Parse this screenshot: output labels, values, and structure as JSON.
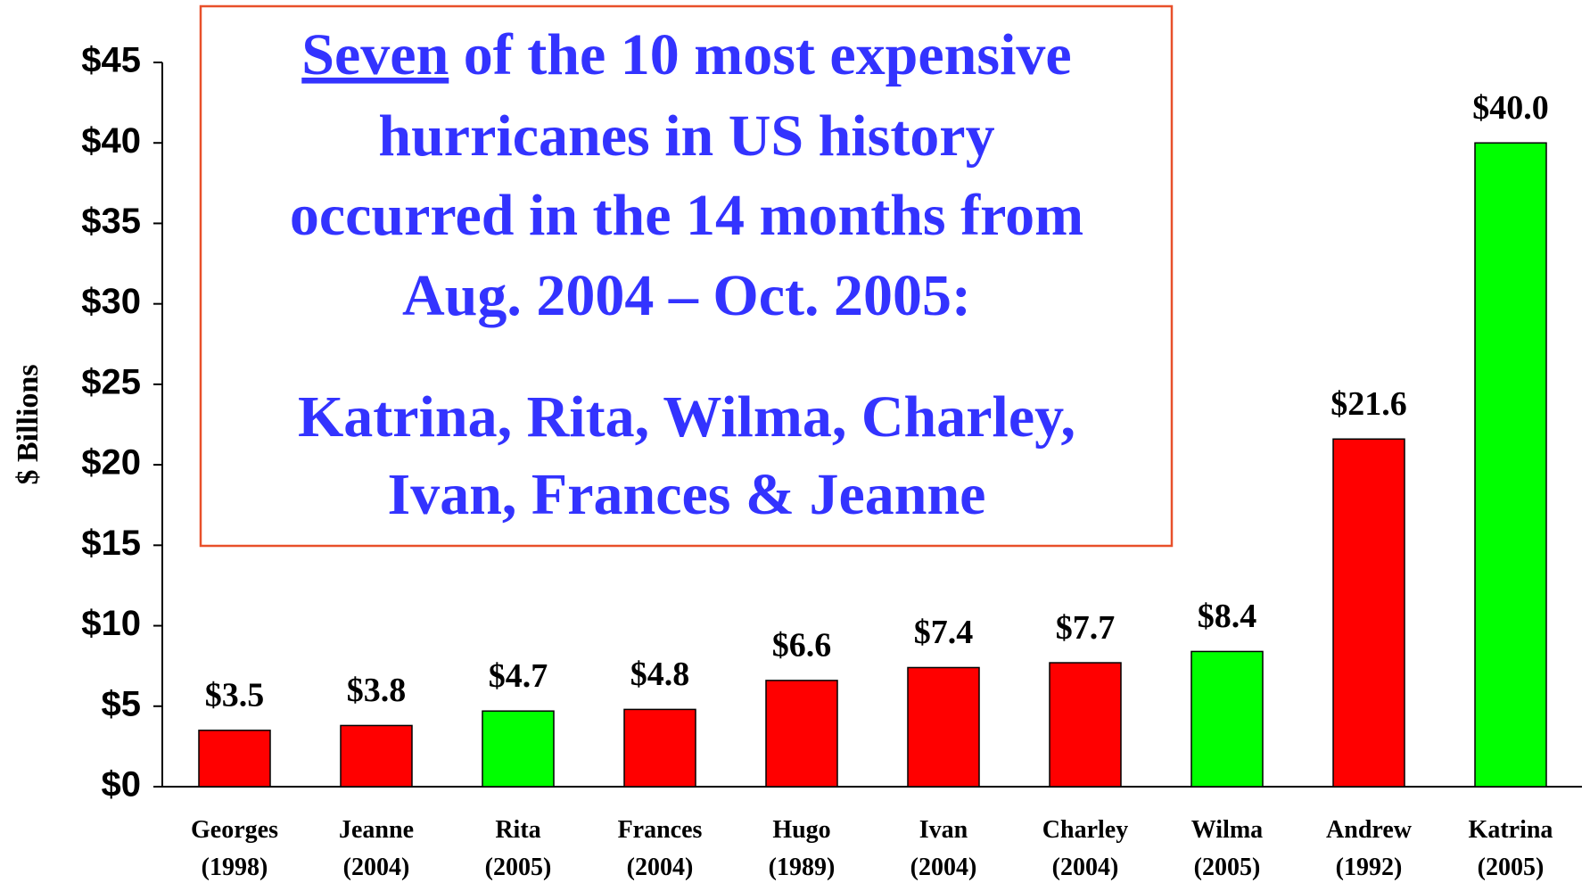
{
  "chart_data": {
    "type": "bar",
    "y_label": "$ Billions",
    "categories": [
      "Georges (1998)",
      "Jeanne (2004)",
      "Rita (2005)",
      "Frances (2004)",
      "Hugo (1989)",
      "Ivan (2004)",
      "Charley (2004)",
      "Wilma (2005)",
      "Andrew (1992)",
      "Katrina (2005)"
    ],
    "values": [
      3.5,
      3.8,
      4.7,
      4.8,
      6.6,
      7.4,
      7.7,
      8.4,
      21.6,
      40.0
    ],
    "value_labels": [
      "$3.5",
      "$3.8",
      "$4.7",
      "$4.8",
      "$6.6",
      "$7.4",
      "$7.7",
      "$8.4",
      "$21.6",
      "$40.0"
    ],
    "colors": [
      "#ff0000",
      "#ff0000",
      "#00ff00",
      "#ff0000",
      "#ff0000",
      "#ff0000",
      "#ff0000",
      "#00ff00",
      "#ff0000",
      "#00ff00"
    ],
    "ylim": [
      0,
      45
    ],
    "yticks": [
      {
        "value": 0,
        "label": "$0"
      },
      {
        "value": 5,
        "label": "$5"
      },
      {
        "value": 10,
        "label": "$10"
      },
      {
        "value": 15,
        "label": "$15"
      },
      {
        "value": 20,
        "label": "$20"
      },
      {
        "value": 25,
        "label": "$25"
      },
      {
        "value": 30,
        "label": "$30"
      },
      {
        "value": 35,
        "label": "$35"
      },
      {
        "value": 40,
        "label": "$40"
      },
      {
        "value": 45,
        "label": "$45"
      }
    ],
    "annotation": {
      "underlined": "Seven",
      "lines": [
        " of the 10 most expensive",
        "hurricanes in US history",
        "occurred in the 14 months from",
        "Aug. 2004 – Oct. 2005:",
        "Katrina, Rita, Wilma, Charley,",
        "Ivan, Frances & Jeanne"
      ]
    }
  }
}
